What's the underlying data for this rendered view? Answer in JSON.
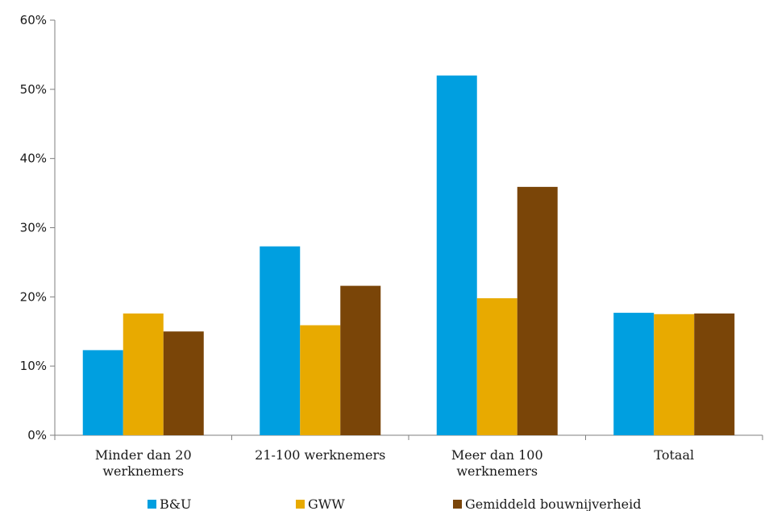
{
  "chart_data": {
    "type": "bar",
    "categories": [
      [
        "Minder dan 20",
        "werknemers"
      ],
      [
        "21-100 werknemers"
      ],
      [
        "Meer dan 100",
        "werknemers"
      ],
      [
        "Totaal"
      ]
    ],
    "series": [
      {
        "name": "B&U",
        "color": "#009fe0",
        "values": [
          12.3,
          27.3,
          52.0,
          17.7
        ]
      },
      {
        "name": "GWW",
        "color": "#e8aa00",
        "values": [
          17.6,
          15.9,
          19.8,
          17.5
        ]
      },
      {
        "name": "Gemiddeld bouwnijverheid",
        "color": "#7a4508",
        "values": [
          15.0,
          21.6,
          35.9,
          17.6
        ]
      }
    ],
    "ylim": [
      0,
      60
    ],
    "yticks": [
      "0%",
      "10%",
      "20%",
      "30%",
      "40%",
      "50%",
      "60%"
    ],
    "legend_position": "bottom",
    "grid": false
  }
}
